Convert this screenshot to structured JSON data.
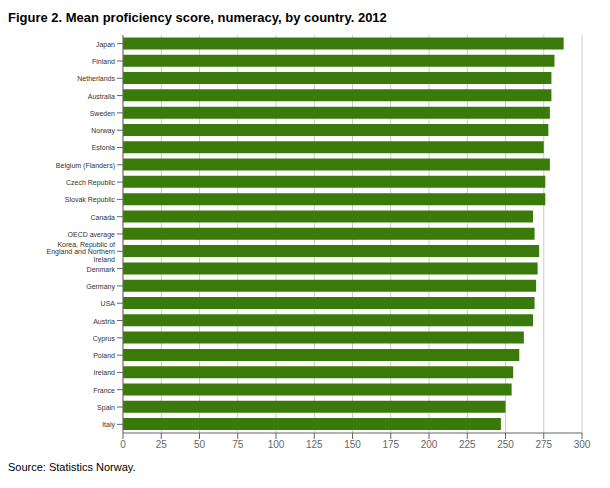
{
  "chart_data": {
    "type": "bar",
    "orientation": "horizontal",
    "title": "Figure 2. Mean proficiency score, numeracy, by country. 2012",
    "annotations": [
      "Source: Statistics Norway."
    ],
    "categories": [
      "Japan",
      "Finland",
      "Netherlands",
      "Australia",
      "Sweden",
      "Norway",
      "Estonia",
      "Belgium (Flanders)",
      "Czech Republic",
      "Slovak Republic",
      "Canada",
      "OECD average",
      "Korea, Republic of\nEngland and Northern\nIreland",
      "Denmark",
      "Germany",
      "USA",
      "Austria",
      "Cyprus",
      "Poland",
      "Ireland",
      "France",
      "Spain",
      "Italy"
    ],
    "values": [
      288,
      282,
      280,
      280,
      279,
      278,
      275,
      279,
      276,
      276,
      268,
      269,
      272,
      271,
      270,
      269,
      268,
      262,
      259,
      255,
      254,
      250,
      247
    ],
    "color": "#3a7a0a",
    "xlim": [
      0,
      300
    ],
    "xticks": [
      0,
      25,
      50,
      75,
      100,
      125,
      150,
      175,
      200,
      225,
      250,
      275,
      300
    ],
    "grid": true
  }
}
